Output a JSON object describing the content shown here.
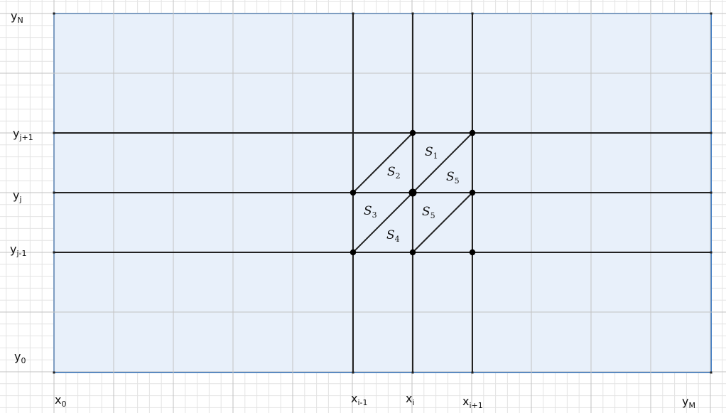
{
  "diagram": {
    "x_labels": [
      {
        "id": "x0",
        "base": "x",
        "sub": "0"
      },
      {
        "id": "xim1",
        "base": "x",
        "sub": "i-1"
      },
      {
        "id": "xi",
        "base": "x",
        "sub": "i"
      },
      {
        "id": "xip1",
        "base": "x",
        "sub": "i+1"
      },
      {
        "id": "yM",
        "base": "y",
        "sub": "M"
      }
    ],
    "y_labels": [
      {
        "id": "yN",
        "base": "y",
        "sub": "N"
      },
      {
        "id": "yjp1",
        "base": "y",
        "sub": "j+1"
      },
      {
        "id": "yj",
        "base": "y",
        "sub": "j"
      },
      {
        "id": "yjm1",
        "base": "y",
        "sub": "j-1"
      },
      {
        "id": "y0",
        "base": "y",
        "sub": "0"
      }
    ],
    "regions": [
      {
        "id": "s1",
        "base": "S",
        "sub": "1"
      },
      {
        "id": "s2",
        "base": "S",
        "sub": "2"
      },
      {
        "id": "s5a",
        "base": "S",
        "sub": "5"
      },
      {
        "id": "s3",
        "base": "S",
        "sub": "3"
      },
      {
        "id": "s5b",
        "base": "S",
        "sub": "5"
      },
      {
        "id": "s4",
        "base": "S",
        "sub": "4"
      }
    ],
    "colors": {
      "domain_fill": "#e8f0fa",
      "domain_border": "#3b78c0",
      "grid_minor": "#e4e4e4",
      "grid_major": "#c2c2c2",
      "mesh_line": "#222222",
      "node": "#000000"
    }
  }
}
